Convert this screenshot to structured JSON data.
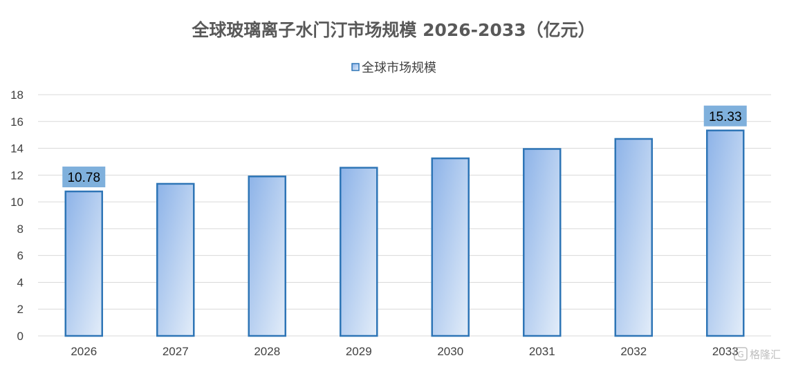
{
  "chart_data": {
    "type": "bar",
    "title": "全球玻璃离子水门汀市场规模 2026-2033（亿元）",
    "categories": [
      "2026",
      "2027",
      "2028",
      "2029",
      "2030",
      "2031",
      "2032",
      "2033"
    ],
    "series": [
      {
        "name": "全球市场规模",
        "values": [
          10.78,
          11.35,
          11.9,
          12.55,
          13.25,
          13.95,
          14.7,
          15.33
        ]
      }
    ],
    "data_labels": [
      {
        "category": "2026",
        "text": "10.78"
      },
      {
        "category": "2033",
        "text": "15.33"
      }
    ],
    "ylim": [
      0,
      18
    ],
    "yticks": [
      0,
      2,
      4,
      6,
      8,
      10,
      12,
      14,
      16,
      18
    ],
    "grid": true,
    "legend_position": "top",
    "colors": {
      "bar_fill_top": "#8db3e8",
      "bar_fill_bottom": "#dde9f8",
      "bar_border": "#2e75b6",
      "label_bg": "#7fb0dc",
      "grid": "#d9d9d9",
      "title": "#595959"
    }
  },
  "watermark": {
    "icon": "gelonghui-logo-icon",
    "text": "格隆汇"
  }
}
